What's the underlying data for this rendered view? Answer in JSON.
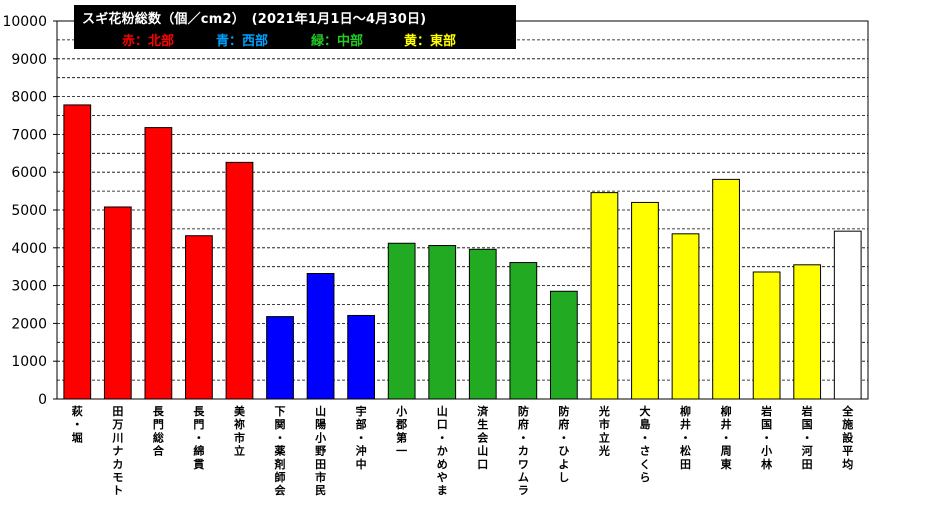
{
  "chart_data": {
    "type": "bar",
    "title": "スギ花粉総数（個／cm2）　(2021年1月1日～4月30日)",
    "xlabel": "",
    "ylabel": "",
    "ylim": [
      0,
      10000
    ],
    "yticks": [
      "0",
      "1000",
      "2000",
      "3000",
      "4000",
      "5000",
      "6000",
      "7000",
      "8000",
      "9000",
      "10000"
    ],
    "grid": "dashed horizontal every 500",
    "legend": [
      {
        "label": "赤：北部",
        "color": "#ff0000"
      },
      {
        "label": "青：西部",
        "color": "#00a0ff"
      },
      {
        "label": "緑：中部",
        "color": "#22cc22"
      },
      {
        "label": "黄：東部",
        "color": "#ffff00"
      }
    ],
    "categories": [
      "萩・堀",
      "田万川ナカモト",
      "長門総合",
      "長門・綿貫",
      "美祢市立",
      "下関・薬剤師会",
      "山陽小野田市民",
      "宇部・沖中",
      "小郡第一",
      "山口・かめやま",
      "済生会山口",
      "防府・カワムラ",
      "防府・ひよし",
      "光市立光",
      "大島・さくら",
      "柳井・松田",
      "柳井・周東",
      "岩国・小林",
      "岩国・河田",
      "全施設平均"
    ],
    "values": [
      7780,
      5080,
      7180,
      4320,
      6260,
      2180,
      3320,
      2210,
      4120,
      4060,
      3960,
      3610,
      2850,
      5460,
      5200,
      4370,
      5810,
      3360,
      3550,
      4440
    ],
    "bar_colors": [
      "#ff0000",
      "#ff0000",
      "#ff0000",
      "#ff0000",
      "#ff0000",
      "#0000ff",
      "#0000ff",
      "#0000ff",
      "#22aa22",
      "#22aa22",
      "#22aa22",
      "#22aa22",
      "#22aa22",
      "#ffff00",
      "#ffff00",
      "#ffff00",
      "#ffff00",
      "#ffff00",
      "#ffff00",
      "#ffffff"
    ]
  }
}
